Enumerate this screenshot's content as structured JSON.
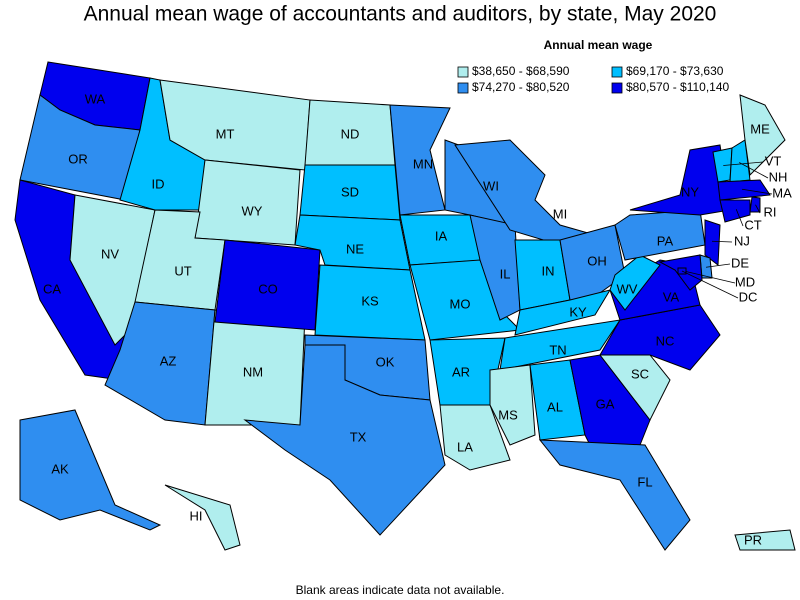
{
  "title": "Annual mean wage of accountants and auditors, by state, May 2020",
  "legend": {
    "title": "Annual mean wage",
    "bins": [
      {
        "label": "$38,650 - $68,590",
        "color": "#b0eeee"
      },
      {
        "label": "$69,170 - $73,630",
        "color": "#00bfff"
      },
      {
        "label": "$74,270 - $80,520",
        "color": "#2f8ef0"
      },
      {
        "label": "$80,570 - $110,140",
        "color": "#0000ee"
      }
    ]
  },
  "states": [
    {
      "label": "WA",
      "bin": 3
    },
    {
      "label": "OR",
      "bin": 2
    },
    {
      "label": "CA",
      "bin": 3
    },
    {
      "label": "NV",
      "bin": 0
    },
    {
      "label": "ID",
      "bin": 1
    },
    {
      "label": "MT",
      "bin": 0
    },
    {
      "label": "WY",
      "bin": 0
    },
    {
      "label": "UT",
      "bin": 0
    },
    {
      "label": "AZ",
      "bin": 2
    },
    {
      "label": "NM",
      "bin": 0
    },
    {
      "label": "CO",
      "bin": 3
    },
    {
      "label": "ND",
      "bin": 0
    },
    {
      "label": "SD",
      "bin": 1
    },
    {
      "label": "NE",
      "bin": 1
    },
    {
      "label": "KS",
      "bin": 1
    },
    {
      "label": "OK",
      "bin": 2
    },
    {
      "label": "TX",
      "bin": 2
    },
    {
      "label": "MN",
      "bin": 2
    },
    {
      "label": "IA",
      "bin": 1
    },
    {
      "label": "MO",
      "bin": 1
    },
    {
      "label": "AR",
      "bin": 1
    },
    {
      "label": "LA",
      "bin": 0
    },
    {
      "label": "WI",
      "bin": 2
    },
    {
      "label": "IL",
      "bin": 2
    },
    {
      "label": "MI",
      "bin": 2
    },
    {
      "label": "IN",
      "bin": 1
    },
    {
      "label": "OH",
      "bin": 2
    },
    {
      "label": "KY",
      "bin": 1
    },
    {
      "label": "TN",
      "bin": 1
    },
    {
      "label": "MS",
      "bin": 0
    },
    {
      "label": "AL",
      "bin": 1
    },
    {
      "label": "GA",
      "bin": 3
    },
    {
      "label": "FL",
      "bin": 2
    },
    {
      "label": "SC",
      "bin": 0
    },
    {
      "label": "NC",
      "bin": 3
    },
    {
      "label": "VA",
      "bin": 3
    },
    {
      "label": "WV",
      "bin": 1
    },
    {
      "label": "PA",
      "bin": 2
    },
    {
      "label": "NY",
      "bin": 3
    },
    {
      "label": "VT",
      "bin": 1
    },
    {
      "label": "NH",
      "bin": 1
    },
    {
      "label": "ME",
      "bin": 0
    },
    {
      "label": "MA",
      "bin": 3
    },
    {
      "label": "RI",
      "bin": 3
    },
    {
      "label": "CT",
      "bin": 3
    },
    {
      "label": "NJ",
      "bin": 3
    },
    {
      "label": "DE",
      "bin": 2
    },
    {
      "label": "MD",
      "bin": 3
    },
    {
      "label": "DC",
      "bin": 3
    },
    {
      "label": "AK",
      "bin": 2
    },
    {
      "label": "HI",
      "bin": 0
    },
    {
      "label": "PR",
      "bin": 0
    }
  ],
  "footnote": "Blank areas indicate data not available."
}
